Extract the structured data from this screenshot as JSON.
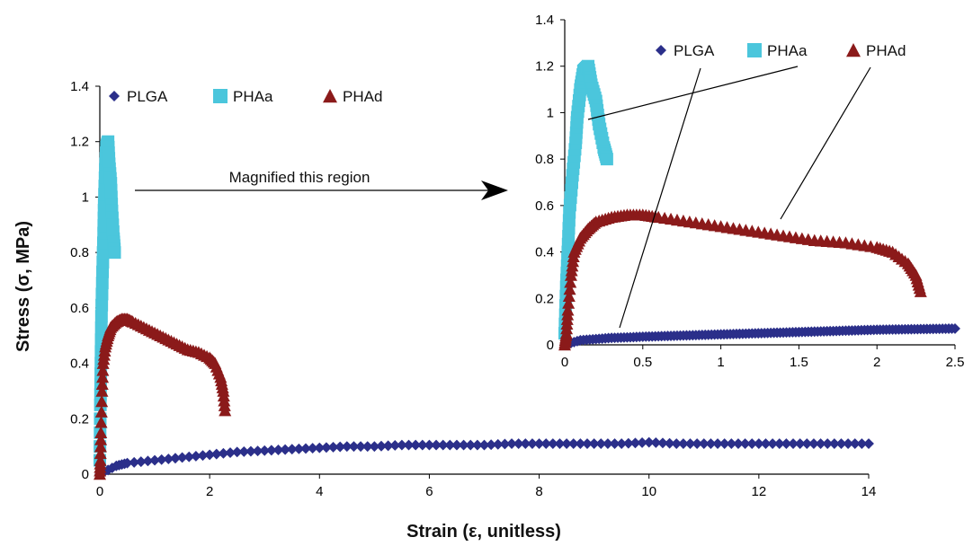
{
  "chart_data": [
    {
      "id": "main",
      "type": "scatter",
      "xlabel": "Strain (ε, unitless)",
      "ylabel": "Stress (σ, MPa)",
      "xlim": [
        0,
        14
      ],
      "ylim": [
        0,
        1.4
      ],
      "xticks": [
        "0",
        "2",
        "4",
        "6",
        "8",
        "10",
        "12",
        "14"
      ],
      "yticks": [
        "0",
        "0.2",
        "0.4",
        "0.6",
        "0.8",
        "1",
        "1.2",
        "1.4"
      ],
      "legend": {
        "position": "top-left",
        "entries": [
          "PLGA",
          "PHAa",
          "PHAd"
        ]
      },
      "grid": false,
      "annotation": "Magnified this region",
      "series": [
        {
          "name": "PLGA",
          "marker": "diamond",
          "color": "#2b2f8a",
          "x": [
            0,
            0.3,
            0.5,
            1,
            1.5,
            2,
            2.5,
            3,
            3.5,
            4,
            4.5,
            5,
            5.5,
            6,
            6.5,
            7,
            7.5,
            8,
            8.5,
            9,
            9.5,
            10,
            10.5,
            11,
            11.5,
            12,
            12.5,
            13,
            13.5,
            14
          ],
          "y": [
            0,
            0.03,
            0.04,
            0.05,
            0.06,
            0.07,
            0.08,
            0.085,
            0.09,
            0.095,
            0.1,
            0.1,
            0.105,
            0.105,
            0.105,
            0.105,
            0.11,
            0.11,
            0.11,
            0.11,
            0.11,
            0.115,
            0.11,
            0.11,
            0.11,
            0.11,
            0.11,
            0.11,
            0.11,
            0.11
          ]
        },
        {
          "name": "PHAa",
          "marker": "square",
          "color": "#4bc6dc",
          "x": [
            0,
            0.01,
            0.02,
            0.03,
            0.05,
            0.07,
            0.08,
            0.1,
            0.12,
            0.15,
            0.17,
            0.2,
            0.22,
            0.25,
            0.27
          ],
          "y": [
            0.05,
            0.25,
            0.4,
            0.57,
            0.73,
            0.87,
            0.98,
            1.1,
            1.18,
            1.2,
            1.12,
            1.05,
            0.95,
            0.85,
            0.8
          ]
        },
        {
          "name": "PHAd",
          "marker": "triangle",
          "color": "#8b1a1a",
          "x": [
            0,
            0.01,
            0.02,
            0.04,
            0.06,
            0.1,
            0.15,
            0.2,
            0.3,
            0.4,
            0.5,
            0.6,
            0.8,
            1,
            1.2,
            1.4,
            1.6,
            1.8,
            2,
            2.1,
            2.2,
            2.25,
            2.28
          ],
          "y": [
            0,
            0.05,
            0.15,
            0.3,
            0.4,
            0.46,
            0.5,
            0.53,
            0.55,
            0.56,
            0.56,
            0.55,
            0.53,
            0.51,
            0.49,
            0.47,
            0.45,
            0.44,
            0.42,
            0.4,
            0.35,
            0.3,
            0.23
          ]
        }
      ]
    },
    {
      "id": "inset",
      "type": "scatter",
      "xlabel": "",
      "ylabel": "",
      "xlim": [
        0,
        2.5
      ],
      "ylim": [
        0,
        1.4
      ],
      "xticks": [
        "0",
        "0.5",
        "1",
        "1.5",
        "2",
        "2.5"
      ],
      "yticks": [
        "0",
        "0.2",
        "0.4",
        "0.6",
        "0.8",
        "1",
        "1.2",
        "1.4"
      ],
      "legend": {
        "position": "top-right",
        "entries": [
          "PLGA",
          "PHAa",
          "PHAd"
        ]
      },
      "grid": false,
      "series": [
        {
          "name": "PLGA",
          "marker": "diamond",
          "color": "#2b2f8a",
          "x": [
            0,
            0.1,
            0.2,
            0.3,
            0.4,
            0.5,
            0.6,
            0.7,
            0.8,
            0.9,
            1,
            1.1,
            1.2,
            1.3,
            1.4,
            1.5,
            1.6,
            1.7,
            1.8,
            1.9,
            2,
            2.1,
            2.2,
            2.3,
            2.4,
            2.5
          ],
          "y": [
            0,
            0.02,
            0.025,
            0.03,
            0.032,
            0.035,
            0.037,
            0.039,
            0.041,
            0.043,
            0.045,
            0.047,
            0.049,
            0.051,
            0.053,
            0.055,
            0.057,
            0.059,
            0.061,
            0.063,
            0.065,
            0.066,
            0.067,
            0.068,
            0.069,
            0.07
          ]
        },
        {
          "name": "PHAa",
          "marker": "square",
          "color": "#4bc6dc",
          "x": [
            0,
            0.01,
            0.02,
            0.03,
            0.05,
            0.07,
            0.08,
            0.1,
            0.12,
            0.15,
            0.17,
            0.2,
            0.22,
            0.25,
            0.27
          ],
          "y": [
            0.05,
            0.25,
            0.4,
            0.57,
            0.73,
            0.87,
            0.98,
            1.1,
            1.18,
            1.2,
            1.12,
            1.05,
            0.95,
            0.85,
            0.8
          ]
        },
        {
          "name": "PHAd",
          "marker": "triangle",
          "color": "#8b1a1a",
          "x": [
            0,
            0.01,
            0.02,
            0.04,
            0.06,
            0.1,
            0.15,
            0.2,
            0.3,
            0.4,
            0.5,
            0.6,
            0.8,
            1,
            1.2,
            1.4,
            1.6,
            1.8,
            2,
            2.1,
            2.2,
            2.25,
            2.28
          ],
          "y": [
            0,
            0.05,
            0.15,
            0.3,
            0.4,
            0.46,
            0.5,
            0.53,
            0.55,
            0.56,
            0.56,
            0.55,
            0.53,
            0.51,
            0.49,
            0.47,
            0.45,
            0.44,
            0.42,
            0.4,
            0.35,
            0.3,
            0.23
          ]
        }
      ]
    }
  ]
}
